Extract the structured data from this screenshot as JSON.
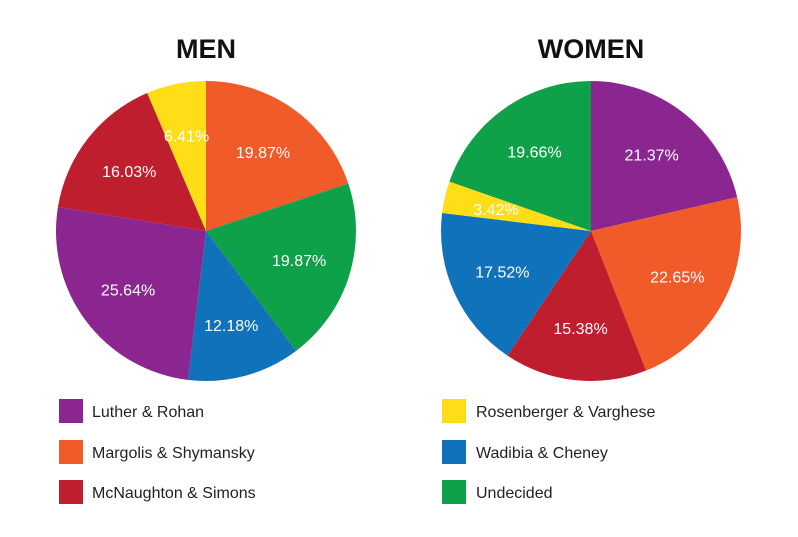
{
  "colors": {
    "Luther & Rohan": "#8B2590",
    "Margolis & Shymansky": "#F15A29",
    "McNaughton & Simons": "#BE1E2D",
    "Rosenberger & Varghese": "#FFDE17",
    "Wadibia & Cheney": "#1072BA",
    "Undecided": "#0FA14A"
  },
  "legend": [
    "Luther & Rohan",
    "Margolis & Shymansky",
    "McNaughton & Simons",
    "Rosenberger & Varghese",
    "Wadibia & Cheney",
    "Undecided"
  ],
  "chart_data": [
    {
      "type": "pie",
      "title": "MEN",
      "slices": [
        {
          "name": "Margolis & Shymansky",
          "value": 19.87,
          "label": "19.87%"
        },
        {
          "name": "Undecided",
          "value": 19.87,
          "label": "19.87%"
        },
        {
          "name": "Wadibia & Cheney",
          "value": 12.18,
          "label": "12.18%"
        },
        {
          "name": "Luther & Rohan",
          "value": 25.64,
          "label": "25.64%"
        },
        {
          "name": "McNaughton & Simons",
          "value": 16.03,
          "label": "16.03%"
        },
        {
          "name": "Rosenberger & Varghese",
          "value": 6.41,
          "label": "6.41%"
        }
      ]
    },
    {
      "type": "pie",
      "title": "WOMEN",
      "slices": [
        {
          "name": "Luther & Rohan",
          "value": 21.37,
          "label": "21.37%"
        },
        {
          "name": "Margolis & Shymansky",
          "value": 22.65,
          "label": "22.65%"
        },
        {
          "name": "McNaughton & Simons",
          "value": 15.38,
          "label": "15.38%"
        },
        {
          "name": "Wadibia & Cheney",
          "value": 17.52,
          "label": "17.52%"
        },
        {
          "name": "Rosenberger & Varghese",
          "value": 3.42,
          "label": "3.42%"
        },
        {
          "name": "Undecided",
          "value": 19.66,
          "label": "19.66%"
        }
      ]
    }
  ]
}
